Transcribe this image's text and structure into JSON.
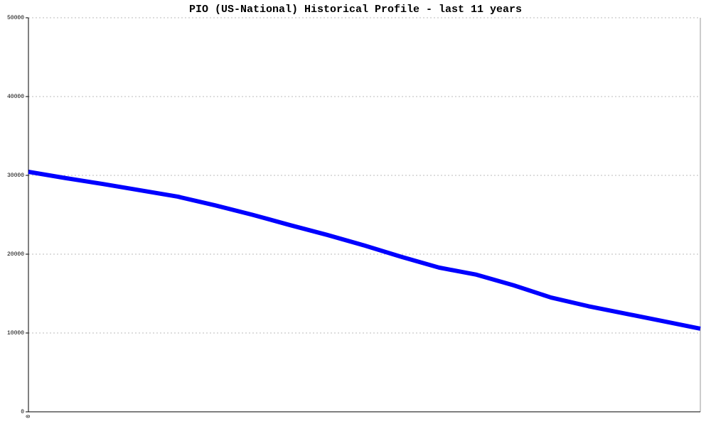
{
  "chart_data": {
    "type": "line",
    "title": "PIO (US-National) Historical Profile - last 11 years",
    "categories": [
      "0",
      null,
      null,
      null,
      null,
      null,
      null,
      null,
      null,
      null,
      null,
      null,
      null,
      null,
      null,
      null,
      null,
      null,
      null
    ],
    "series": [
      {
        "name": "PIO",
        "color": "#0000ff",
        "values": [
          30450,
          29650,
          28900,
          28100,
          27300,
          26200,
          25000,
          23700,
          22450,
          21100,
          19650,
          18300,
          17400,
          16050,
          14500,
          13400,
          12450,
          11500,
          10550
        ]
      }
    ],
    "ylim": [
      0,
      50000
    ],
    "yticks": [
      0,
      10000,
      20000,
      30000,
      40000,
      50000
    ],
    "grid": true
  }
}
